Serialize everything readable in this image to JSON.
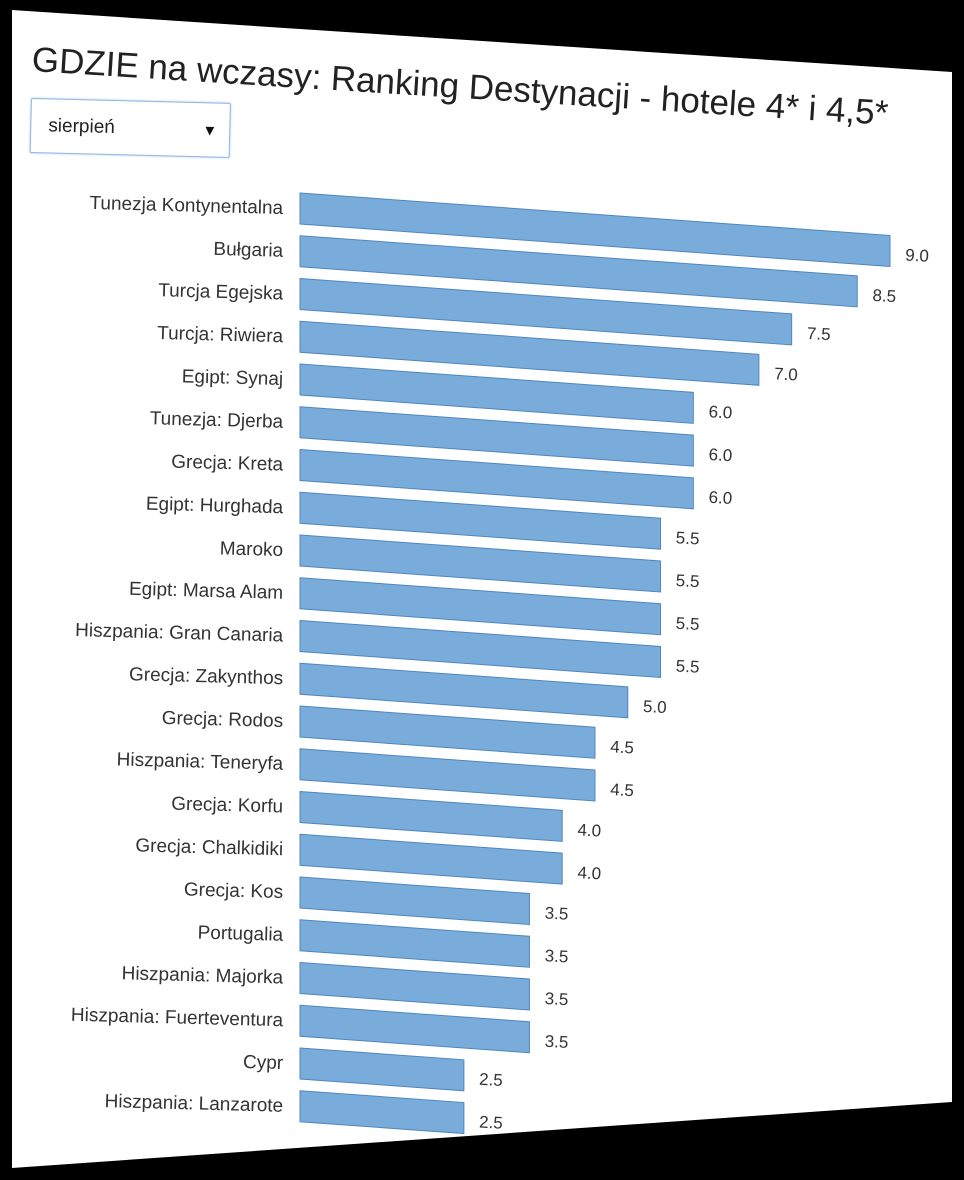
{
  "title": "GDZIE na wczasy: Ranking Destynacji - hotele 4* i 4,5*",
  "dropdown": {
    "selected": "sierpień",
    "arrow": "▼"
  },
  "colors": {
    "bar_fill": "#79acdb",
    "bar_stroke": "#4f87bd",
    "label": "#333333",
    "value": "#333333"
  },
  "chart_data": {
    "type": "bar",
    "orientation": "horizontal",
    "title": "GDZIE na wczasy: Ranking Destynacji - hotele 4* i 4,5*",
    "categories": [
      "Tunezja Kontynentalna",
      "Bułgaria",
      "Turcja Egejska",
      "Turcja: Riwiera",
      "Egipt: Synaj",
      "Tunezja: Djerba",
      "Grecja: Kreta",
      "Egipt: Hurghada",
      "Maroko",
      "Egipt: Marsa Alam",
      "Hiszpania: Gran Canaria",
      "Grecja: Zakynthos",
      "Grecja: Rodos",
      "Hiszpania: Teneryfa",
      "Grecja: Korfu",
      "Grecja: Chalkidiki",
      "Grecja: Kos",
      "Portugalia",
      "Hiszpania: Majorka",
      "Hiszpania: Fuerteventura",
      "Cypr",
      "Hiszpania: Lanzarote"
    ],
    "values": [
      9.0,
      8.5,
      7.5,
      7.0,
      6.0,
      6.0,
      6.0,
      5.5,
      5.5,
      5.5,
      5.5,
      5.0,
      4.5,
      4.5,
      4.0,
      4.0,
      3.5,
      3.5,
      3.5,
      3.5,
      2.5,
      2.5
    ],
    "value_labels": [
      "9.0",
      "8.5",
      "7.5",
      "7.0",
      "6.0",
      "6.0",
      "6.0",
      "5.5",
      "5.5",
      "5.5",
      "5.5",
      "5.0",
      "4.5",
      "4.5",
      "4.0",
      "4.0",
      "3.5",
      "3.5",
      "3.5",
      "3.5",
      "2.5",
      "2.5"
    ],
    "xlim": [
      0,
      9.0
    ],
    "grid": false,
    "legend": "none"
  }
}
